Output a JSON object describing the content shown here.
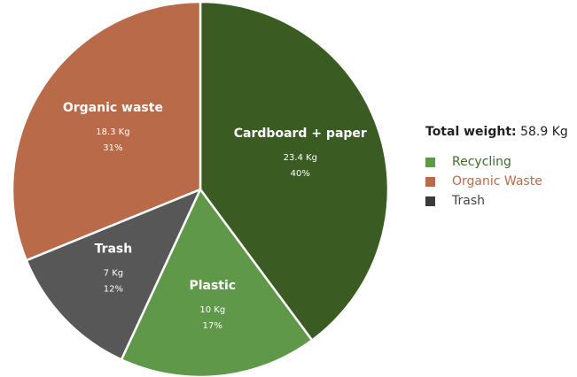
{
  "chart_data": {
    "type": "pie",
    "unit": "Kg",
    "slices": [
      {
        "label": "Cardboard + paper",
        "value": 23.4,
        "value_text": "23.4 Kg",
        "percent": 40,
        "percent_text": "40%",
        "color": "#3a5c22"
      },
      {
        "label": "Plastic",
        "value": 10,
        "value_text": "10 Kg",
        "percent": 17,
        "percent_text": "17%",
        "color": "#5e9848"
      },
      {
        "label": "Trash",
        "value": 7,
        "value_text": "7 Kg",
        "percent": 12,
        "percent_text": "12%",
        "color": "#575757"
      },
      {
        "label": "Organic waste",
        "value": 18.3,
        "value_text": "18.3 Kg",
        "percent": 31,
        "percent_text": "31%",
        "color": "#b96a48"
      }
    ],
    "legend": {
      "placement": "right",
      "total_label": "Total weight:",
      "total_value": "58.9 Kg",
      "entries": [
        {
          "label": "Recycling",
          "color": "#5e9848",
          "text_color": "#3d6b2b"
        },
        {
          "label": "Organic Waste",
          "color": "#b96a48",
          "text_color": "#b96a48"
        },
        {
          "label": "Trash",
          "color": "#3a3a3a",
          "text_color": "#444444"
        }
      ]
    }
  }
}
